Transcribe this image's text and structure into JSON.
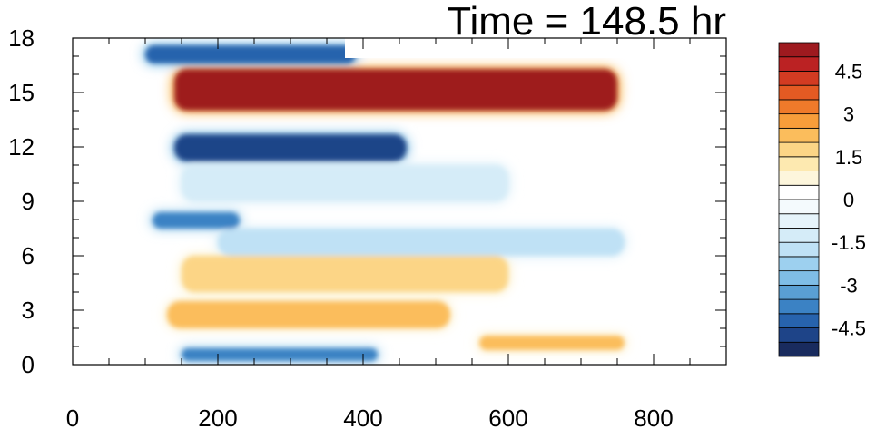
{
  "chart_data": {
    "type": "heatmap",
    "title": "Time = 148.5 hr",
    "xlim": [
      0,
      900
    ],
    "ylim": [
      0,
      18
    ],
    "x_ticks": [
      0,
      200,
      400,
      600,
      800
    ],
    "y_ticks": [
      0,
      3,
      6,
      9,
      12,
      15,
      18
    ],
    "colorbar": {
      "levels": [
        -5.5,
        -5,
        -4.5,
        -4,
        -3.5,
        -3,
        -2.5,
        -2,
        -1.5,
        -1,
        -0.5,
        0,
        0.5,
        1,
        1.5,
        2,
        2.5,
        3,
        3.5,
        4,
        4.5,
        5,
        5.5
      ],
      "colors": [
        "#192b5e",
        "#1e4488",
        "#2763ad",
        "#3b82c4",
        "#5a9fd3",
        "#7fbde6",
        "#9dd0ef",
        "#bfe1f5",
        "#d5ecf8",
        "#e6f4fb",
        "#f4fafd",
        "#ffffff",
        "#fdf6dc",
        "#fde9b0",
        "#fcd586",
        "#fbbd5c",
        "#f79d3a",
        "#ef7a2a",
        "#e45a23",
        "#d33b22",
        "#bb2223",
        "#9e1a1f"
      ],
      "labels": [
        "4.5",
        "3",
        "1.5",
        "0",
        "-1.5",
        "-3",
        "-4.5"
      ]
    },
    "features": [
      {
        "x0": 140,
        "x1": 750,
        "y0": 14.0,
        "y1": 16.3,
        "value": 5.0
      },
      {
        "x0": 140,
        "x1": 460,
        "y0": 11.2,
        "y1": 12.7,
        "value": -5.0
      },
      {
        "x0": 100,
        "x1": 390,
        "y0": 16.6,
        "y1": 17.6,
        "value": -4.5
      },
      {
        "x0": 150,
        "x1": 600,
        "y0": 4.0,
        "y1": 6.0,
        "value": 1.8
      },
      {
        "x0": 130,
        "x1": 520,
        "y0": 2.0,
        "y1": 3.5,
        "value": 2.0
      },
      {
        "x0": 560,
        "x1": 760,
        "y0": 0.8,
        "y1": 1.6,
        "value": 2.2
      },
      {
        "x0": 150,
        "x1": 420,
        "y0": 0.2,
        "y1": 0.9,
        "value": -4.0
      },
      {
        "x0": 150,
        "x1": 600,
        "y0": 9.0,
        "y1": 11.0,
        "value": -1.5
      },
      {
        "x0": 200,
        "x1": 760,
        "y0": 6.0,
        "y1": 7.5,
        "value": -1.8
      },
      {
        "x0": 110,
        "x1": 230,
        "y0": 7.5,
        "y1": 8.4,
        "value": -4.0
      }
    ]
  }
}
